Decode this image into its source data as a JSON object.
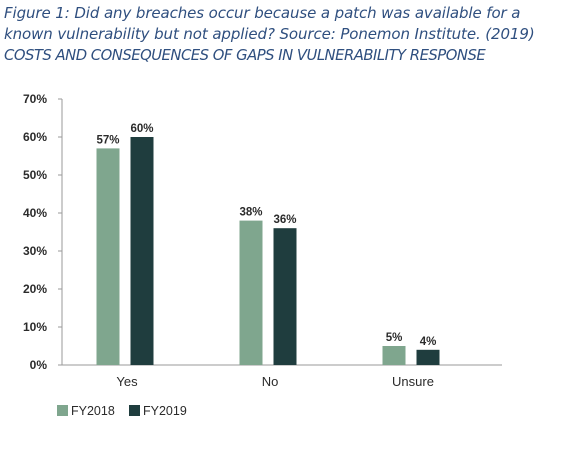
{
  "caption": {
    "line1": "Figure 1: Did any breaches occur because a patch was available for a",
    "line2": "known vulnerability but not applied? Source: Ponemon Institute. (2019)",
    "line3": "COSTS AND CONSEQUENCES OF GAPS IN VULNERABILITY RESPONSE"
  },
  "chart_data": {
    "type": "bar",
    "categories": [
      "Yes",
      "No",
      "Unsure"
    ],
    "series": [
      {
        "name": "FY2018",
        "values": [
          57,
          38,
          5
        ],
        "labels": [
          "57%",
          "38%",
          "5%"
        ],
        "color": "#7fa68e"
      },
      {
        "name": "FY2019",
        "values": [
          60,
          36,
          4
        ],
        "labels": [
          "60%",
          "36%",
          "4%"
        ],
        "color": "#1f3d3e"
      }
    ],
    "ylim": [
      0,
      70
    ],
    "yticks": [
      "0%",
      "10%",
      "20%",
      "30%",
      "40%",
      "50%",
      "60%",
      "70%"
    ],
    "ytick_values": [
      0,
      10,
      20,
      30,
      40,
      50,
      60,
      70
    ],
    "legend_position": "bottom-left",
    "grid": false
  }
}
